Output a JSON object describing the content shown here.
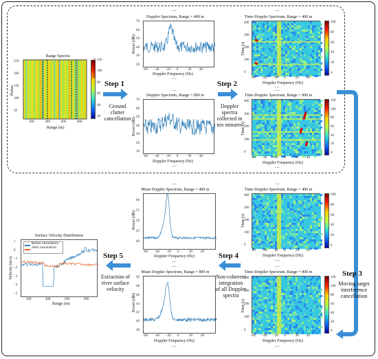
{
  "panels": {
    "range_spectra": {
      "title": "Range Spectra",
      "xlabel": "Range (m)",
      "ylabel": "Pulses",
      "cbar_label": "Power (dB)",
      "xticks": [
        "200",
        "400",
        "600",
        "800"
      ],
      "yticks": [
        "250",
        "200",
        "150",
        "100",
        "50"
      ],
      "cticks": [
        "120",
        "100",
        "80",
        "60",
        "40",
        "20"
      ]
    },
    "dop400": {
      "title": "Doppler Spectrum, Range = 400 m",
      "xlabel": "Doppler Frequency (Hz)",
      "ylabel": "Power (dB)",
      "xticks": [
        "−60",
        "−40",
        "−20",
        "0",
        "20",
        "40"
      ],
      "yticks": [
        "70",
        "60",
        "50",
        "40",
        "30",
        "20"
      ]
    },
    "dop800": {
      "title": "Doppler Spectrum, Range = 800 m",
      "xlabel": "Doppler Frequency (Hz)",
      "ylabel": "Power (dB)",
      "xticks": [
        "−60",
        "−40",
        "−20",
        "0",
        "20",
        "40"
      ],
      "yticks": [
        "70",
        "60",
        "50",
        "40",
        "30",
        "20",
        "10"
      ]
    },
    "td400a": {
      "title": "Time-Doppler Spectrum, Range = 400 m",
      "xlabel": "Doppler Frequency (Hz)",
      "ylabel": "Time (s)",
      "cbar_label": "Power (dB)",
      "xticks": [
        "−60",
        "−40",
        "−20",
        "0",
        "20",
        "40"
      ],
      "yticks": [
        "400",
        "300",
        "200",
        "100",
        "0"
      ],
      "cticks": [
        "100",
        "80",
        "60",
        "40",
        "20",
        "0"
      ]
    },
    "td800a": {
      "title": "Time-Doppler Spectrum, Range = 800 m",
      "xlabel": "Doppler Frequency (Hz)",
      "ylabel": "Time (s)",
      "cbar_label": "Power (dB)",
      "xticks": [
        "−60",
        "−40",
        "−20",
        "0",
        "20",
        "40"
      ],
      "yticks": [
        "400",
        "300",
        "200",
        "100",
        "0"
      ],
      "cticks": [
        "120",
        "100",
        "80",
        "60",
        "40",
        "20",
        "0"
      ]
    },
    "td400b": {
      "title": "Time-Doppler Spectrum, Range = 400 m",
      "xlabel": "Doppler Frequency (Hz)",
      "ylabel": "Time (s)",
      "cbar_label": "Power (dB)",
      "xticks": [
        "−60",
        "−40",
        "−20",
        "0",
        "20",
        "40"
      ],
      "yticks": [
        "400",
        "300",
        "200",
        "100",
        "0"
      ],
      "cticks": [
        "100",
        "80",
        "60",
        "40",
        "20",
        "0"
      ]
    },
    "td800b": {
      "title": "Time-Doppler Spectrum, Range = 800 m",
      "xlabel": "Doppler Frequency (Hz)",
      "ylabel": "Time (s)",
      "cbar_label": "Power (dB)",
      "xticks": [
        "−60",
        "−40",
        "−20",
        "0",
        "20",
        "40"
      ],
      "yticks": [
        "400",
        "300",
        "200",
        "100",
        "0"
      ],
      "cticks": [
        "120",
        "100",
        "80",
        "60",
        "40",
        "20",
        "0"
      ]
    },
    "mean400": {
      "title": "Mean Doppler Spectrum, Range = 400 m",
      "xlabel": "Doppler Frequency (Hz)",
      "ylabel": "Power (dB)",
      "xticks": [
        "−60",
        "−40",
        "−20",
        "0",
        "20",
        "40"
      ],
      "yticks": [
        "60",
        "55",
        "50",
        "45",
        "40"
      ]
    },
    "mean800": {
      "title": "Mean Doppler Spectrum, Range = 800 m",
      "xlabel": "Doppler Frequency (Hz)",
      "ylabel": "Power (dB)",
      "xticks": [
        "−60",
        "−40",
        "−20",
        "0",
        "20",
        "40"
      ],
      "yticks": [
        "50",
        "48",
        "46",
        "44",
        "42",
        "40",
        "38"
      ]
    },
    "velocity": {
      "title": "Surface Velocity Distribution",
      "xlabel": "Range (m)",
      "ylabel": "Velocity (m/s)",
      "legend": [
        "Before cancellation",
        "After cancellation"
      ],
      "xticks": [
        "200",
        "400",
        "600",
        "800"
      ],
      "yticks": [
        "1",
        "0",
        "−1",
        "−2",
        "−3",
        "−4",
        "−5"
      ]
    }
  },
  "steps": [
    {
      "label": "Step 1",
      "desc": [
        "Ground",
        "clutter",
        "cancellation"
      ]
    },
    {
      "label": "Step 2",
      "desc": [
        "Doppler",
        "spectra",
        "collected in",
        "ten minutes"
      ]
    },
    {
      "label": "Step 3",
      "desc": [
        "Moving target",
        "interference",
        "cancellation"
      ]
    },
    {
      "label": "Step 4",
      "desc": [
        "Non-coherent",
        "integration",
        "of all Doppler",
        "spectra"
      ]
    },
    {
      "label": "Step 5",
      "desc": [
        "Extraction of",
        "river surface",
        "velocity"
      ]
    }
  ],
  "ellipsis": "⋯",
  "colors": {
    "arrow": "#3a8fd6",
    "line_blue": "#2c7bb6",
    "line_orange": "#e06020"
  }
}
